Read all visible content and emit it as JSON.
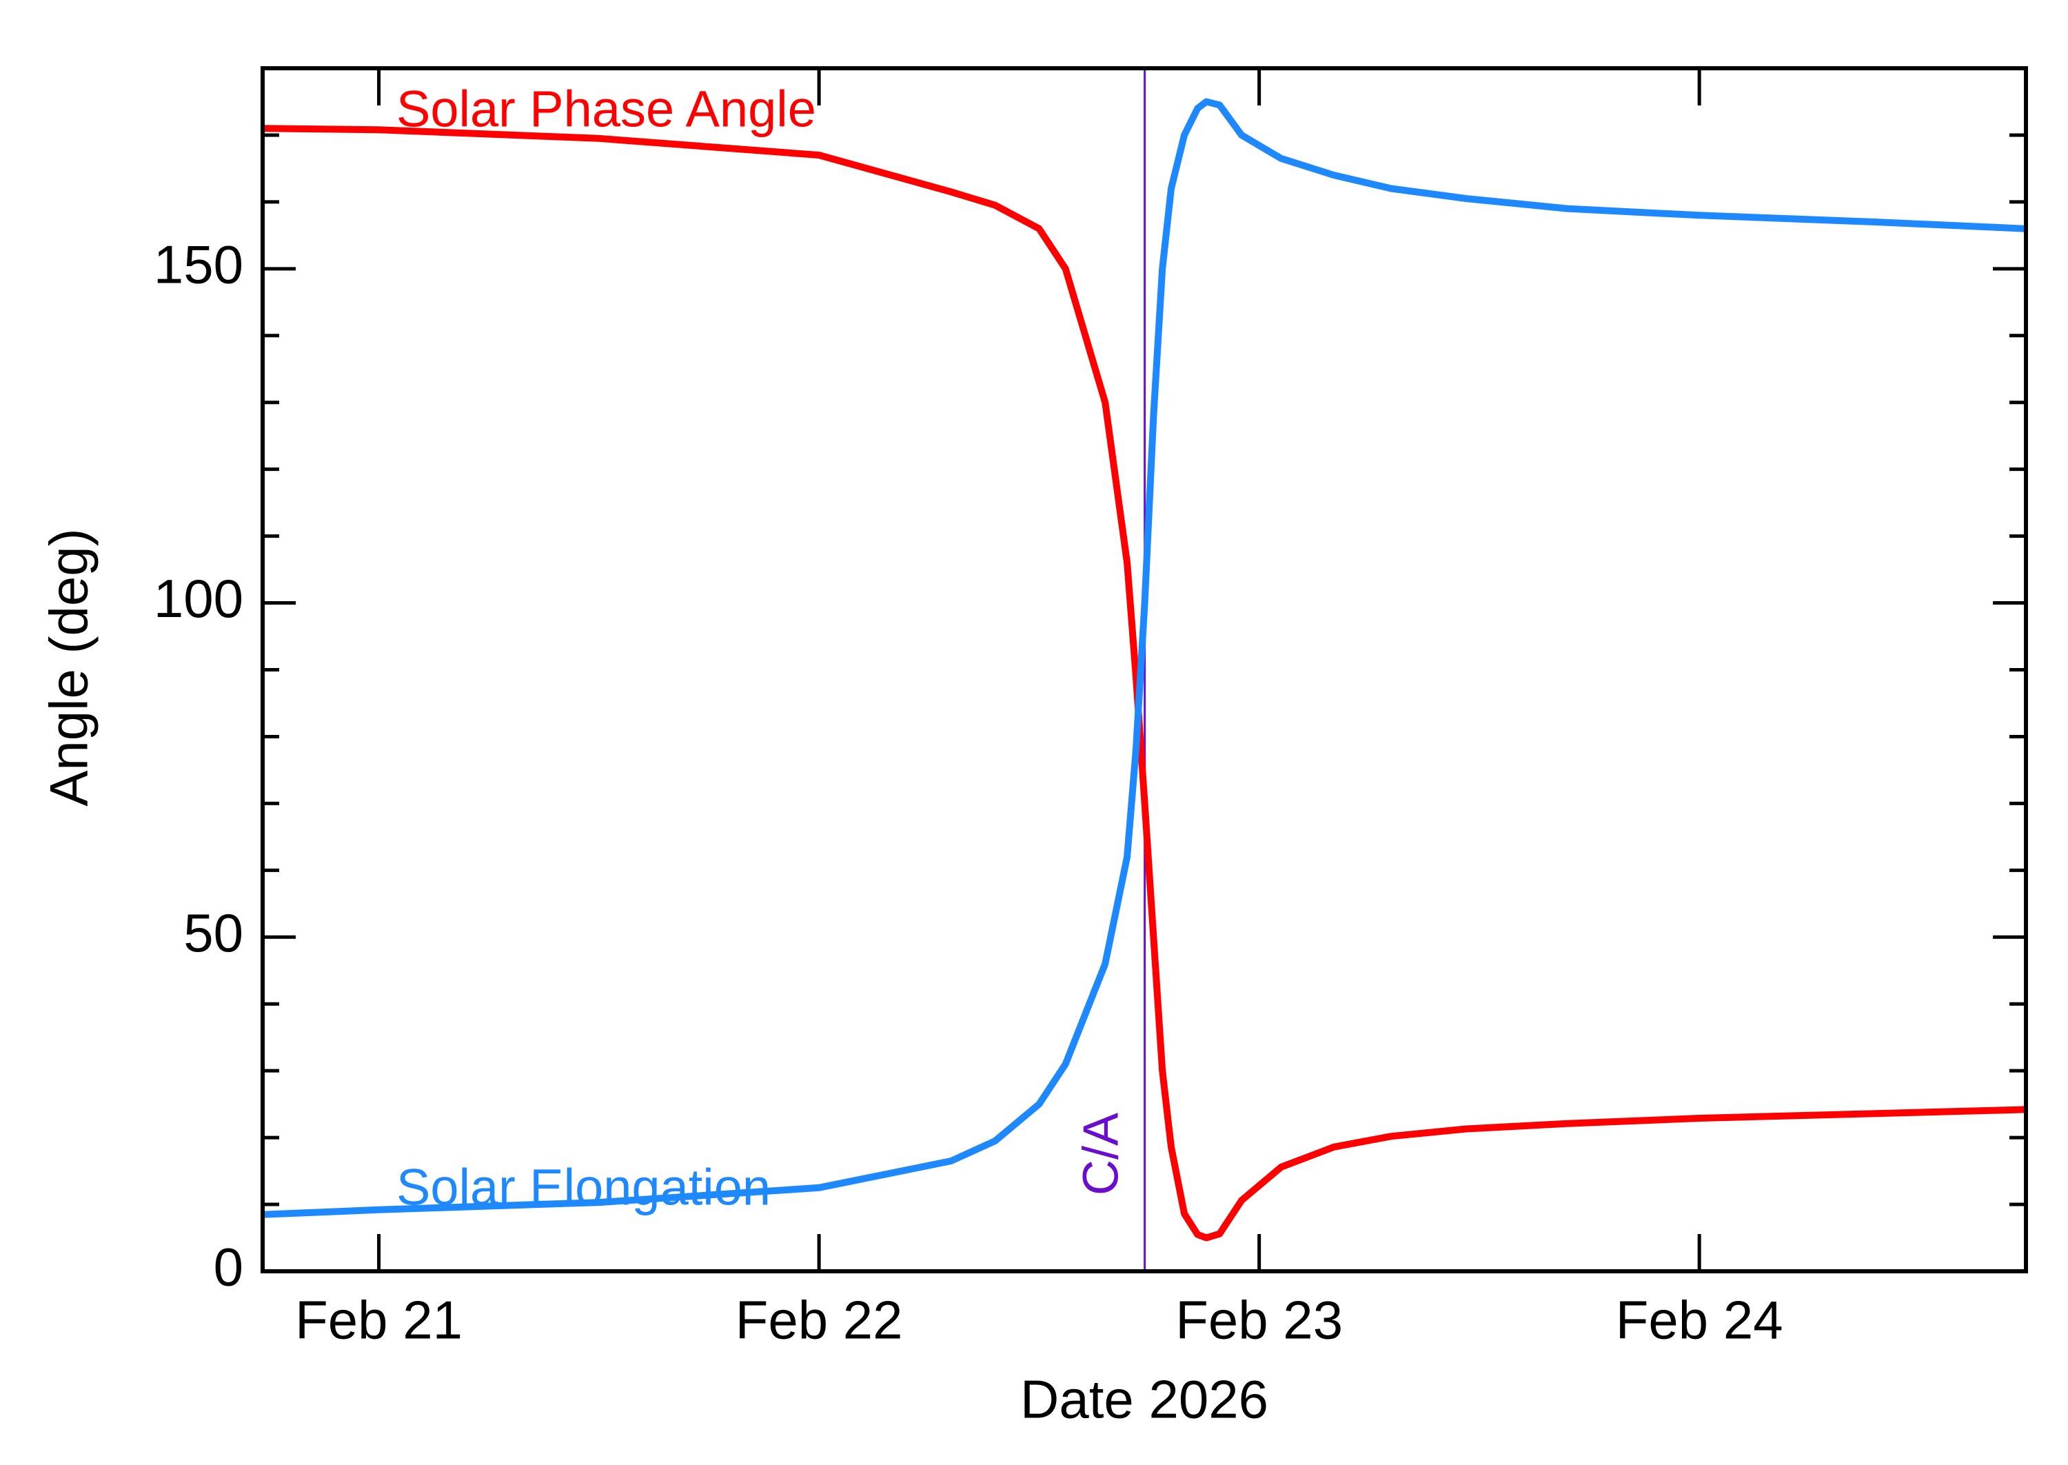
{
  "chart_data": {
    "type": "line",
    "x_label": "Date 2026",
    "y_label": "Angle (deg)",
    "x": [
      20.74,
      21.0,
      21.5,
      22.0,
      22.3,
      22.4,
      22.5,
      22.56,
      22.65,
      22.7,
      22.72,
      22.74,
      22.76,
      22.78,
      22.8,
      22.83,
      22.86,
      22.88,
      22.91,
      22.96,
      23.05,
      23.17,
      23.3,
      23.47,
      23.7,
      24.0,
      24.4,
      24.74
    ],
    "series": [
      {
        "name": "Solar Phase Angle",
        "color": "#ff0000",
        "values": [
          171,
          170.8,
          169.5,
          167,
          161.5,
          159.5,
          156,
          150,
          130,
          106,
          89,
          70,
          50,
          30,
          18.6,
          8.6,
          5.5,
          5,
          5.6,
          10.6,
          15.6,
          18.6,
          20.2,
          21.3,
          22.1,
          22.9,
          23.6,
          24.2
        ]
      },
      {
        "name": "Solar Elongation",
        "color": "#1e88ff",
        "values": [
          8.5,
          9.2,
          10.3,
          12.5,
          16.5,
          19.5,
          25,
          31,
          46,
          62,
          78,
          100,
          128,
          150,
          162,
          170,
          174,
          175,
          174.5,
          170,
          166.5,
          164,
          162,
          160.5,
          159,
          158,
          157,
          156
        ]
      }
    ],
    "annotations": [
      {
        "text": "C/A",
        "x": 22.74,
        "color": "#6a0dcc"
      }
    ],
    "xlim": [
      20.736,
      24.742
    ],
    "xticks": [
      {
        "value": 21,
        "label": "Feb 21"
      },
      {
        "value": 22,
        "label": "Feb 22"
      },
      {
        "value": 23,
        "label": "Feb 23"
      },
      {
        "value": 24,
        "label": "Feb 24"
      }
    ],
    "ylim": [
      0,
      180
    ],
    "yticks": [
      0,
      50,
      100,
      150
    ],
    "yminorticks": [
      10,
      20,
      30,
      40,
      60,
      70,
      80,
      90,
      110,
      120,
      130,
      140,
      160,
      170
    ]
  }
}
